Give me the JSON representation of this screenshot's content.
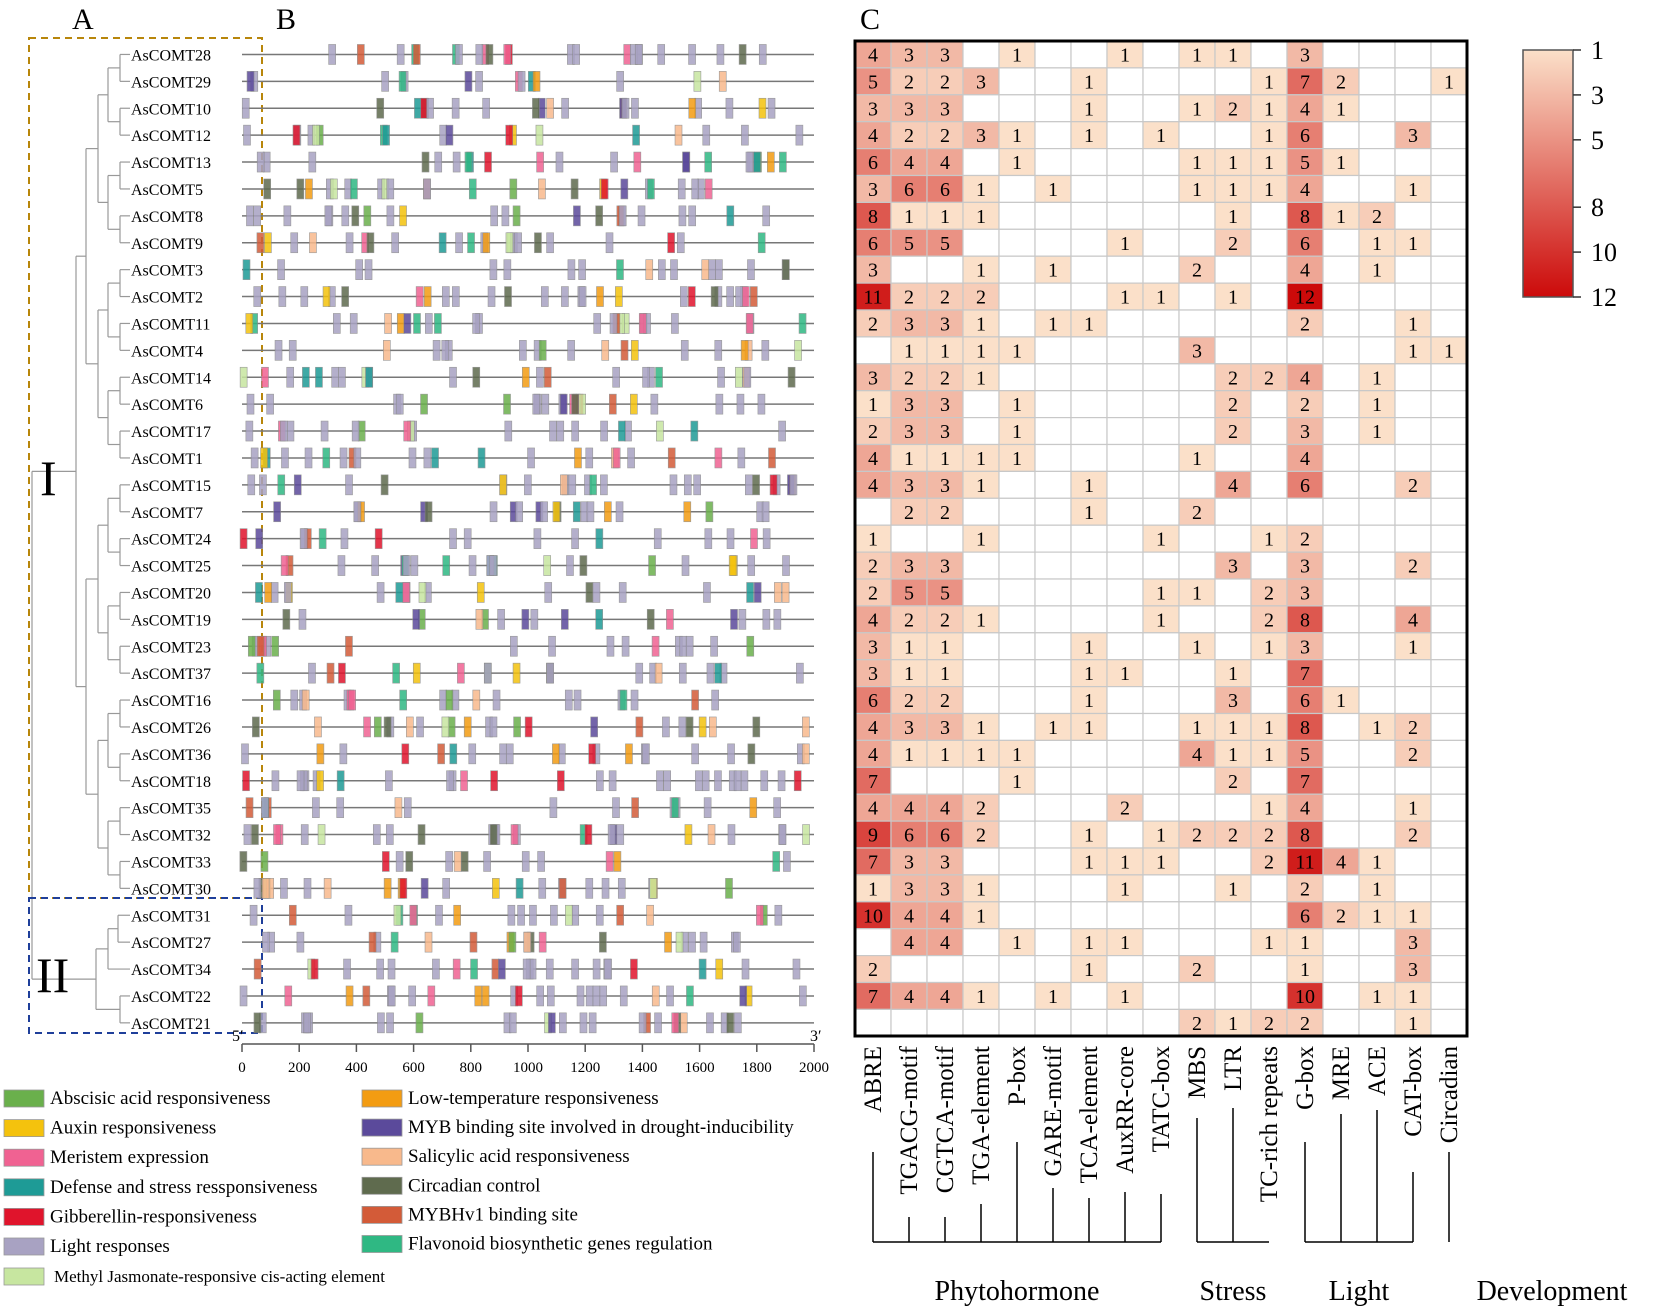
{
  "panel_labels": [
    "A",
    "B",
    "C"
  ],
  "clade_labels": [
    "I",
    "II"
  ],
  "genes": [
    "AsCOMT28",
    "AsCOMT29",
    "AsCOMT10",
    "AsCOMT12",
    "AsCOMT13",
    "AsCOMT5",
    "AsCOMT8",
    "AsCOMT9",
    "AsCOMT3",
    "AsCOMT2",
    "AsCOMT11",
    "AsCOMT4",
    "AsCOMT14",
    "AsCOMT6",
    "AsCOMT17",
    "AsCOMT1",
    "AsCOMT15",
    "AsCOMT7",
    "AsCOMT24",
    "AsCOMT25",
    "AsCOMT20",
    "AsCOMT19",
    "AsCOMT23",
    "AsCOMT37",
    "AsCOMT16",
    "AsCOMT26",
    "AsCOMT36",
    "AsCOMT18",
    "AsCOMT35",
    "AsCOMT32",
    "AsCOMT33",
    "AsCOMT30",
    "AsCOMT31",
    "AsCOMT27",
    "AsCOMT34",
    "AsCOMT22",
    "AsCOMT21"
  ],
  "promoter_axis": {
    "ticks": [
      "0",
      "200",
      "400",
      "600",
      "800",
      "1000",
      "1200",
      "1400",
      "1600",
      "1800",
      "2000"
    ],
    "five_prime": "5′",
    "three_prime": "3′"
  },
  "legend": [
    {
      "label": "Abscisic acid responsiveness",
      "color": "#6ab04c"
    },
    {
      "label": "Auxin responsiveness",
      "color": "#f4c20d"
    },
    {
      "label": "Meristem expression",
      "color": "#f06292"
    },
    {
      "label": "Defense and stress ressponsiveness",
      "color": "#1e9b96"
    },
    {
      "label": "Gibberellin-responsiveness",
      "color": "#e0142c"
    },
    {
      "label": "Light responses",
      "color": "#a8a2c2"
    },
    {
      "label": "Methyl Jasmonate-responsive cis-acting element",
      "color": "#c7e6a0"
    },
    {
      "label": "Low-temperature responsiveness",
      "color": "#f39c12"
    },
    {
      "label": "MYB binding site involved in drought-inducibility",
      "color": "#5b4a9b"
    },
    {
      "label": "Salicylic acid responsiveness",
      "color": "#f8b98c"
    },
    {
      "label": "Circadian control",
      "color": "#5f6b4e"
    },
    {
      "label": "MYBHv1 binding site",
      "color": "#d35b38"
    },
    {
      "label": "Flavonoid biosynthetic genes regulation",
      "color": "#2fb883"
    }
  ],
  "chart_data": {
    "type": "heatmap",
    "columns": [
      "ABRE",
      "TGACG-motif",
      "CGTCA-motif",
      "TGA-element",
      "P-box",
      "GARE-motif",
      "TCA-element",
      "AuxRR-core",
      "TATC-box",
      "MBS",
      "LTR",
      "TC-rich repeats",
      "G-box",
      "MRE",
      "ACE",
      "CAT-box",
      "Circadian"
    ],
    "groups": [
      {
        "name": "Phytohormone",
        "columns": [
          "ABRE",
          "TGACG-motif",
          "CGTCA-motif",
          "TGA-element",
          "P-box",
          "GARE-motif",
          "TCA-element",
          "AuxRR-core",
          "TATC-box"
        ]
      },
      {
        "name": "Stress",
        "columns": [
          "MBS",
          "LTR",
          "TC-rich repeats"
        ]
      },
      {
        "name": "Light",
        "columns": [
          "G-box",
          "MRE",
          "ACE",
          "CAT-box"
        ]
      },
      {
        "name": "Development",
        "columns": [
          "Circadian"
        ]
      }
    ],
    "rows": [
      "AsCOMT28",
      "AsCOMT29",
      "AsCOMT10",
      "AsCOMT12",
      "AsCOMT13",
      "AsCOMT5",
      "AsCOMT8",
      "AsCOMT9",
      "AsCOMT3",
      "AsCOMT2",
      "AsCOMT11",
      "AsCOMT4",
      "AsCOMT14",
      "AsCOMT6",
      "AsCOMT17",
      "AsCOMT1",
      "AsCOMT15",
      "AsCOMT7",
      "AsCOMT24",
      "AsCOMT25",
      "AsCOMT20",
      "AsCOMT19",
      "AsCOMT23",
      "AsCOMT37",
      "AsCOMT16",
      "AsCOMT26",
      "AsCOMT36",
      "AsCOMT18",
      "AsCOMT35",
      "AsCOMT32",
      "AsCOMT33",
      "AsCOMT30",
      "AsCOMT31",
      "AsCOMT27",
      "AsCOMT34",
      "AsCOMT22",
      "AsCOMT21"
    ],
    "values": [
      [
        4,
        3,
        3,
        0,
        1,
        0,
        0,
        1,
        0,
        1,
        1,
        0,
        3,
        0,
        0,
        0,
        0
      ],
      [
        5,
        2,
        2,
        3,
        0,
        0,
        1,
        0,
        0,
        0,
        0,
        1,
        7,
        2,
        0,
        0,
        1
      ],
      [
        3,
        3,
        3,
        0,
        0,
        0,
        1,
        0,
        0,
        1,
        2,
        1,
        4,
        1,
        0,
        0,
        0
      ],
      [
        4,
        2,
        2,
        3,
        1,
        0,
        1,
        0,
        1,
        0,
        0,
        1,
        6,
        0,
        0,
        3,
        0
      ],
      [
        6,
        4,
        4,
        0,
        1,
        0,
        0,
        0,
        0,
        1,
        1,
        1,
        5,
        1,
        0,
        0,
        0
      ],
      [
        3,
        6,
        6,
        1,
        0,
        1,
        0,
        0,
        0,
        1,
        1,
        1,
        4,
        0,
        0,
        1,
        0
      ],
      [
        8,
        1,
        1,
        1,
        0,
        0,
        0,
        0,
        0,
        0,
        1,
        0,
        8,
        1,
        2,
        0,
        0
      ],
      [
        6,
        5,
        5,
        0,
        0,
        0,
        0,
        1,
        0,
        0,
        2,
        0,
        6,
        0,
        1,
        1,
        0
      ],
      [
        3,
        0,
        0,
        1,
        0,
        1,
        0,
        0,
        0,
        2,
        0,
        0,
        4,
        0,
        1,
        0,
        0
      ],
      [
        11,
        2,
        2,
        2,
        0,
        0,
        0,
        1,
        1,
        0,
        1,
        0,
        12,
        0,
        0,
        0,
        0
      ],
      [
        2,
        3,
        3,
        1,
        0,
        1,
        1,
        0,
        0,
        0,
        0,
        0,
        2,
        0,
        0,
        1,
        0
      ],
      [
        0,
        1,
        1,
        1,
        1,
        0,
        0,
        0,
        0,
        3,
        0,
        0,
        0,
        0,
        0,
        1,
        1
      ],
      [
        3,
        2,
        2,
        1,
        0,
        0,
        0,
        0,
        0,
        0,
        2,
        2,
        4,
        0,
        1,
        0,
        0
      ],
      [
        1,
        3,
        3,
        0,
        1,
        0,
        0,
        0,
        0,
        0,
        2,
        0,
        2,
        0,
        1,
        0,
        0
      ],
      [
        2,
        3,
        3,
        0,
        1,
        0,
        0,
        0,
        0,
        0,
        2,
        0,
        3,
        0,
        1,
        0,
        0
      ],
      [
        4,
        1,
        1,
        1,
        1,
        0,
        0,
        0,
        0,
        1,
        0,
        0,
        4,
        0,
        0,
        0,
        0
      ],
      [
        4,
        3,
        3,
        1,
        0,
        0,
        1,
        0,
        0,
        0,
        4,
        0,
        6,
        0,
        0,
        2,
        0
      ],
      [
        0,
        2,
        2,
        0,
        0,
        0,
        1,
        0,
        0,
        2,
        0,
        0,
        0,
        0,
        0,
        0,
        0
      ],
      [
        1,
        0,
        0,
        1,
        0,
        0,
        0,
        0,
        1,
        0,
        0,
        1,
        2,
        0,
        0,
        0,
        0
      ],
      [
        2,
        3,
        3,
        0,
        0,
        0,
        0,
        0,
        0,
        0,
        3,
        0,
        3,
        0,
        0,
        2,
        0
      ],
      [
        2,
        5,
        5,
        0,
        0,
        0,
        0,
        0,
        1,
        1,
        0,
        2,
        3,
        0,
        0,
        0,
        0
      ],
      [
        4,
        2,
        2,
        1,
        0,
        0,
        0,
        0,
        1,
        0,
        0,
        2,
        8,
        0,
        0,
        4,
        0
      ],
      [
        3,
        1,
        1,
        0,
        0,
        0,
        1,
        0,
        0,
        1,
        0,
        1,
        3,
        0,
        0,
        1,
        0
      ],
      [
        3,
        1,
        1,
        0,
        0,
        0,
        1,
        1,
        0,
        0,
        1,
        0,
        7,
        0,
        0,
        0,
        0
      ],
      [
        6,
        2,
        2,
        0,
        0,
        0,
        1,
        0,
        0,
        0,
        3,
        0,
        6,
        1,
        0,
        0,
        0
      ],
      [
        4,
        3,
        3,
        1,
        0,
        1,
        1,
        0,
        0,
        1,
        1,
        1,
        8,
        0,
        1,
        2,
        0
      ],
      [
        4,
        1,
        1,
        1,
        1,
        0,
        0,
        0,
        0,
        4,
        1,
        1,
        5,
        0,
        0,
        2,
        0
      ],
      [
        7,
        0,
        0,
        0,
        1,
        0,
        0,
        0,
        0,
        0,
        2,
        0,
        7,
        0,
        0,
        0,
        0
      ],
      [
        4,
        4,
        4,
        2,
        0,
        0,
        0,
        2,
        0,
        0,
        0,
        1,
        4,
        0,
        0,
        1,
        0
      ],
      [
        9,
        6,
        6,
        2,
        0,
        0,
        1,
        0,
        1,
        2,
        2,
        2,
        8,
        0,
        0,
        2,
        0
      ],
      [
        7,
        3,
        3,
        0,
        0,
        0,
        1,
        1,
        1,
        0,
        0,
        2,
        11,
        4,
        1,
        0,
        0
      ],
      [
        1,
        3,
        3,
        1,
        0,
        0,
        0,
        1,
        0,
        0,
        1,
        0,
        2,
        0,
        1,
        0,
        0
      ],
      [
        10,
        4,
        4,
        1,
        0,
        0,
        0,
        0,
        0,
        0,
        0,
        0,
        6,
        2,
        1,
        1,
        0
      ],
      [
        0,
        4,
        4,
        0,
        1,
        0,
        1,
        1,
        0,
        0,
        0,
        1,
        1,
        0,
        0,
        3,
        0
      ],
      [
        2,
        0,
        0,
        0,
        0,
        0,
        1,
        0,
        0,
        2,
        0,
        0,
        1,
        0,
        0,
        3,
        0
      ],
      [
        7,
        4,
        4,
        1,
        0,
        1,
        0,
        1,
        0,
        0,
        0,
        0,
        10,
        0,
        1,
        1,
        0
      ],
      [
        0,
        0,
        0,
        0,
        0,
        0,
        0,
        0,
        0,
        2,
        1,
        2,
        2,
        0,
        0,
        1,
        0
      ]
    ],
    "colorbar": {
      "ticks": [
        "1",
        "3",
        "5",
        "8",
        "10",
        "12"
      ],
      "min": 1,
      "max": 12,
      "low_color": "#fbe0c9",
      "high_color": "#cc0a0a"
    }
  }
}
